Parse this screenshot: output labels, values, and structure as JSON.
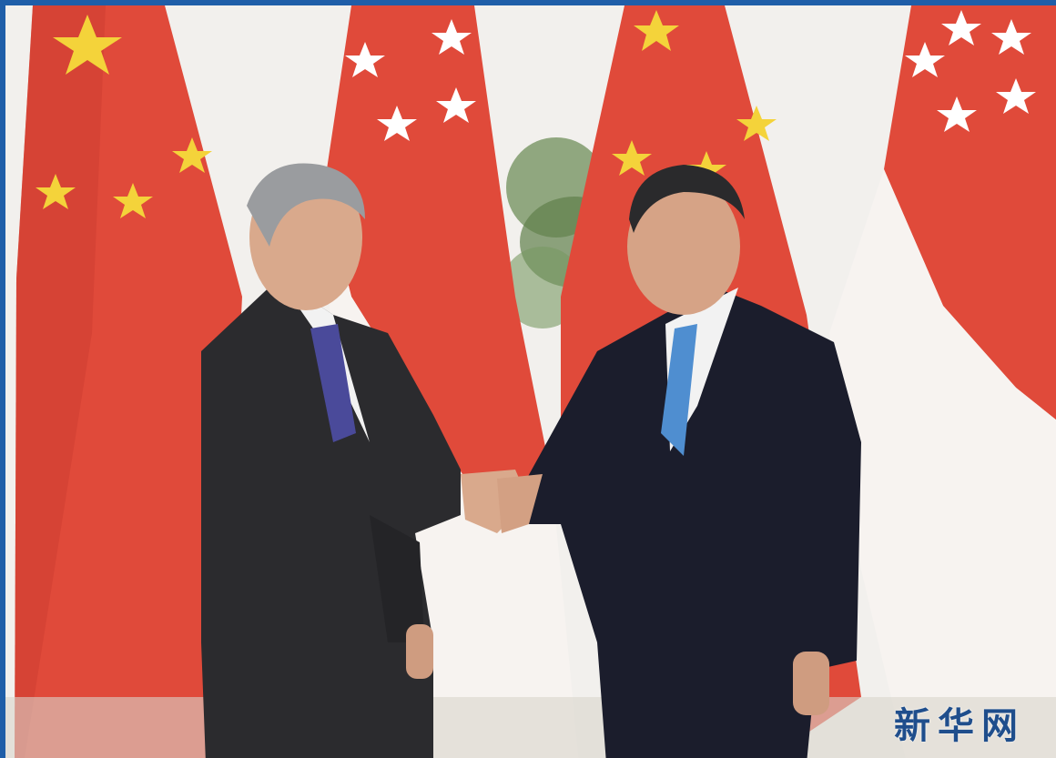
{
  "photo": {
    "subject": "handshake-between-two-leaders",
    "background": "alternating-flags",
    "flags": [
      "china-flag",
      "singapore-flag",
      "china-flag",
      "singapore-flag"
    ],
    "colors": {
      "flag_red": "#e04a3a",
      "flag_white": "#f5f1ee",
      "star_yellow": "#f4d33a",
      "frame_blue": "#1f5ea8"
    }
  },
  "watermark": {
    "text": "新华网",
    "color": "#1f4e8c"
  }
}
